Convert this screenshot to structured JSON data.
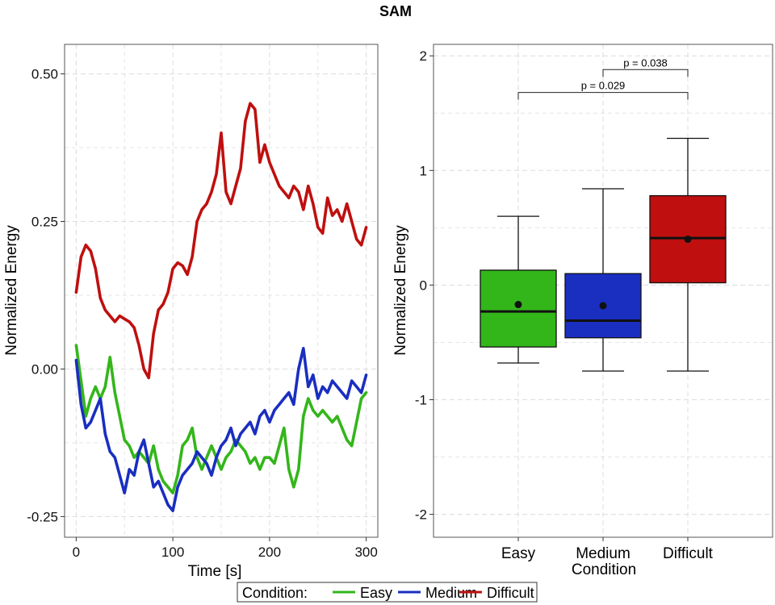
{
  "figure": {
    "title": "SAM",
    "legend": {
      "title": "Condition:",
      "items": [
        {
          "label": "Easy",
          "color": "#33b61a"
        },
        {
          "label": "Medium",
          "color": "#1a2ec0"
        },
        {
          "label": "Difficult",
          "color": "#bf0f0f"
        }
      ]
    }
  },
  "chart_data": [
    {
      "type": "line",
      "xlabel": "Time [s]",
      "ylabel": "Normalized Energy",
      "xlim": [
        -12,
        312
      ],
      "ylim": [
        -0.285,
        0.55
      ],
      "xticks": [
        0,
        100,
        200,
        300
      ],
      "xtick_labels": [
        "0",
        "100",
        "200",
        "300"
      ],
      "yticks": [
        -0.25,
        0.0,
        0.25,
        0.5
      ],
      "ytick_labels": [
        "-0.25",
        "0.00",
        "0.25",
        "0.50"
      ],
      "grid": true,
      "series": [
        {
          "name": "Easy",
          "color": "#33b61a",
          "x": [
            0,
            5,
            10,
            15,
            20,
            25,
            30,
            35,
            40,
            45,
            50,
            55,
            60,
            65,
            70,
            75,
            80,
            85,
            90,
            95,
            100,
            105,
            110,
            115,
            120,
            125,
            130,
            135,
            140,
            145,
            150,
            155,
            160,
            165,
            170,
            175,
            180,
            185,
            190,
            195,
            200,
            205,
            210,
            215,
            220,
            225,
            230,
            235,
            240,
            245,
            250,
            255,
            260,
            265,
            270,
            275,
            280,
            285,
            290,
            295,
            300
          ],
          "y": [
            0.04,
            -0.02,
            -0.08,
            -0.05,
            -0.03,
            -0.05,
            -0.03,
            0.02,
            -0.04,
            -0.08,
            -0.12,
            -0.13,
            -0.15,
            -0.14,
            -0.15,
            -0.16,
            -0.13,
            -0.17,
            -0.19,
            -0.2,
            -0.21,
            -0.18,
            -0.13,
            -0.12,
            -0.1,
            -0.15,
            -0.17,
            -0.15,
            -0.13,
            -0.15,
            -0.17,
            -0.15,
            -0.14,
            -0.12,
            -0.13,
            -0.14,
            -0.16,
            -0.15,
            -0.17,
            -0.15,
            -0.15,
            -0.16,
            -0.13,
            -0.1,
            -0.17,
            -0.2,
            -0.17,
            -0.08,
            -0.05,
            -0.07,
            -0.08,
            -0.07,
            -0.08,
            -0.09,
            -0.08,
            -0.1,
            -0.12,
            -0.13,
            -0.09,
            -0.05,
            -0.04
          ]
        },
        {
          "name": "Medium",
          "color": "#1a2ec0",
          "x": [
            0,
            5,
            10,
            15,
            20,
            25,
            30,
            35,
            40,
            45,
            50,
            55,
            60,
            65,
            70,
            75,
            80,
            85,
            90,
            95,
            100,
            105,
            110,
            115,
            120,
            125,
            130,
            135,
            140,
            145,
            150,
            155,
            160,
            165,
            170,
            175,
            180,
            185,
            190,
            195,
            200,
            205,
            210,
            215,
            220,
            225,
            230,
            235,
            240,
            245,
            250,
            255,
            260,
            265,
            270,
            275,
            280,
            285,
            290,
            295,
            300
          ],
          "y": [
            0.015,
            -0.06,
            -0.1,
            -0.09,
            -0.07,
            -0.05,
            -0.11,
            -0.14,
            -0.15,
            -0.18,
            -0.21,
            -0.17,
            -0.18,
            -0.14,
            -0.12,
            -0.16,
            -0.2,
            -0.19,
            -0.21,
            -0.23,
            -0.24,
            -0.2,
            -0.18,
            -0.17,
            -0.16,
            -0.14,
            -0.15,
            -0.16,
            -0.18,
            -0.15,
            -0.13,
            -0.12,
            -0.1,
            -0.13,
            -0.11,
            -0.1,
            -0.09,
            -0.11,
            -0.08,
            -0.07,
            -0.09,
            -0.07,
            -0.06,
            -0.05,
            -0.04,
            -0.06,
            0.0,
            0.035,
            -0.03,
            -0.01,
            -0.05,
            -0.03,
            -0.04,
            -0.02,
            -0.03,
            -0.04,
            -0.05,
            -0.02,
            -0.03,
            -0.04,
            -0.01
          ]
        },
        {
          "name": "Difficult",
          "color": "#bf0f0f",
          "x": [
            0,
            5,
            10,
            15,
            20,
            25,
            30,
            35,
            40,
            45,
            50,
            55,
            60,
            65,
            70,
            75,
            80,
            85,
            90,
            95,
            100,
            105,
            110,
            115,
            120,
            125,
            130,
            135,
            140,
            145,
            150,
            155,
            160,
            165,
            170,
            175,
            180,
            185,
            190,
            195,
            200,
            205,
            210,
            215,
            220,
            225,
            230,
            235,
            240,
            245,
            250,
            255,
            260,
            265,
            270,
            275,
            280,
            285,
            290,
            295,
            300
          ],
          "y": [
            0.13,
            0.19,
            0.21,
            0.2,
            0.17,
            0.12,
            0.1,
            0.09,
            0.08,
            0.09,
            0.085,
            0.08,
            0.07,
            0.04,
            0.0,
            -0.015,
            0.06,
            0.1,
            0.11,
            0.13,
            0.17,
            0.18,
            0.175,
            0.16,
            0.19,
            0.25,
            0.27,
            0.28,
            0.3,
            0.33,
            0.4,
            0.3,
            0.28,
            0.31,
            0.34,
            0.42,
            0.45,
            0.44,
            0.35,
            0.38,
            0.35,
            0.33,
            0.31,
            0.3,
            0.29,
            0.31,
            0.3,
            0.27,
            0.31,
            0.28,
            0.24,
            0.23,
            0.29,
            0.26,
            0.27,
            0.25,
            0.28,
            0.25,
            0.22,
            0.21,
            0.24
          ]
        }
      ]
    },
    {
      "type": "box",
      "xlabel": "Medium\nCondition",
      "ylabel": "Normalized Energy",
      "categories": [
        "Easy",
        "Medium",
        "Difficult"
      ],
      "ylim": [
        -2.2,
        2.1
      ],
      "yticks": [
        -2,
        -1,
        0,
        1,
        2
      ],
      "ytick_labels": [
        "-2",
        "-1",
        "0",
        "1",
        "2"
      ],
      "grid": true,
      "boxes": [
        {
          "category": "Easy",
          "color": "#33b61a",
          "whisker_low": -0.68,
          "q1": -0.54,
          "median": -0.23,
          "q3": 0.13,
          "whisker_high": 0.6,
          "mean": -0.17
        },
        {
          "category": "Medium",
          "color": "#1a2ec0",
          "whisker_low": -0.75,
          "q1": -0.46,
          "median": -0.31,
          "q3": 0.1,
          "whisker_high": 0.84,
          "mean": -0.18
        },
        {
          "category": "Difficult",
          "color": "#bf0f0f",
          "whisker_low": -0.75,
          "q1": 0.02,
          "median": 0.41,
          "q3": 0.78,
          "whisker_high": 1.28,
          "mean": 0.4
        }
      ],
      "annotations": [
        {
          "from": "Medium",
          "to": "Difficult",
          "y": 1.88,
          "label": "p = 0.038"
        },
        {
          "from": "Easy",
          "to": "Difficult",
          "y": 1.68,
          "label": "p = 0.029"
        }
      ]
    }
  ]
}
